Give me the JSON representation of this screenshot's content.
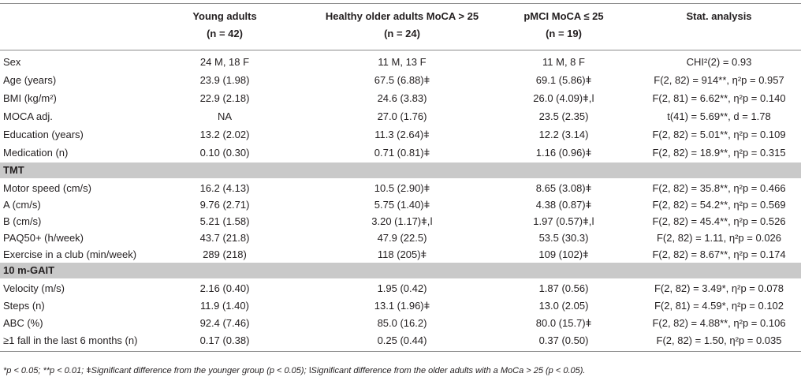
{
  "header": {
    "col1": {
      "title": "Young adults",
      "n": "(n = 42)"
    },
    "col2": {
      "title": "Healthy older adults MoCA > 25",
      "n": "(n = 24)"
    },
    "col3": {
      "title": "pMCI MoCA ≤ 25",
      "n": "(n = 19)"
    },
    "col4": {
      "title": "Stat. analysis"
    }
  },
  "demographics": [
    {
      "label": "Sex",
      "young": "24 M, 18 F",
      "older": "11 M, 13 F",
      "pmci": "11 M, 8 F",
      "stat": "CHI²(2) = 0.93"
    },
    {
      "label": "Age (years)",
      "young": "23.9 (1.98)",
      "older": "67.5 (6.88)ǂ",
      "pmci": "69.1 (5.86)ǂ",
      "stat": "F(2, 82) = 914**, η²p = 0.957"
    },
    {
      "label": "BMI (kg/m²)",
      "young": "22.9 (2.18)",
      "older": "24.6 (3.83)",
      "pmci": "26.0 (4.09)ǂ,ǀ",
      "stat": "F(2, 81) = 6.62**, η²p = 0.140"
    },
    {
      "label": "MOCA adj.",
      "young": "NA",
      "older": "27.0 (1.76)",
      "pmci": "23.5 (2.35)",
      "stat": "t(41) = 5.69**, d = 1.78"
    },
    {
      "label": "Education (years)",
      "young": "13.2 (2.02)",
      "older": "11.3 (2.64)ǂ",
      "pmci": "12.2 (3.14)",
      "stat": "F(2, 82) = 5.01**, η²p = 0.109"
    },
    {
      "label": "Medication (n)",
      "young": "0.10 (0.30)",
      "older": "0.71 (0.81)ǂ",
      "pmci": "1.16 (0.96)ǂ",
      "stat": "F(2, 82) = 18.9**, η²p = 0.315"
    }
  ],
  "tmt": {
    "title": "TMT",
    "rows": [
      {
        "label": "Motor speed (cm/s)",
        "young": "16.2 (4.13)",
        "older": "10.5 (2.90)ǂ",
        "pmci": "8.65 (3.08)ǂ",
        "stat": "F(2, 82) = 35.8**, η²p = 0.466"
      },
      {
        "label": "A (cm/s)",
        "young": "9.76 (2.71)",
        "older": "5.75 (1.40)ǂ",
        "pmci": "4.38 (0.87)ǂ",
        "stat": "F(2, 82) = 54.2**, η²p = 0.569"
      },
      {
        "label": "B (cm/s)",
        "young": "5.21 (1.58)",
        "older": "3.20 (1.17)ǂ,ǀ",
        "pmci": "1.97 (0.57)ǂ,ǀ",
        "stat": "F(2, 82) = 45.4**, η²p = 0.526"
      },
      {
        "label": "PAQ50+ (h/week)",
        "young": "43.7 (21.8)",
        "older": "47.9 (22.5)",
        "pmci": "53.5 (30.3)",
        "stat": "F(2, 82) = 1.11, η²p = 0.026"
      },
      {
        "label": "Exercise in a club (min/week)",
        "young": "289 (218)",
        "older": "118 (205)ǂ",
        "pmci": "109 (102)ǂ",
        "stat": "F(2, 82) = 8.67**, η²p = 0.174"
      }
    ]
  },
  "gait": {
    "title": "10 m-GAIT",
    "rows": [
      {
        "label": "Velocity (m/s)",
        "young": "2.16 (0.40)",
        "older": "1.95 (0.42)",
        "pmci": "1.87 (0.56)",
        "stat": "F(2, 82) = 3.49*, η²p = 0.078"
      },
      {
        "label": "Steps (n)",
        "young": "11.9 (1.40)",
        "older": "13.1 (1.96)ǂ",
        "pmci": "13.0 (2.05)",
        "stat": "F(2, 81) = 4.59*, η²p = 0.102"
      },
      {
        "label": "ABC (%)",
        "young": "92.4 (7.46)",
        "older": "85.0 (16.2)",
        "pmci": "80.0 (15.7)ǂ",
        "stat": "F(2, 82) = 4.88**, η²p = 0.106"
      },
      {
        "label": "≥1 fall in the last 6 months (n)",
        "young": "0.17 (0.38)",
        "older": "0.25 (0.44)",
        "pmci": "0.37 (0.50)",
        "stat": "F(2, 82) = 1.50, η²p = 0.035"
      }
    ]
  },
  "footnote": "*p < 0.05; **p < 0.01; ǂSignificant difference from the younger group (p < 0.05); ǀSignificant difference from the older adults with a MoCa > 25 (p < 0.05)."
}
